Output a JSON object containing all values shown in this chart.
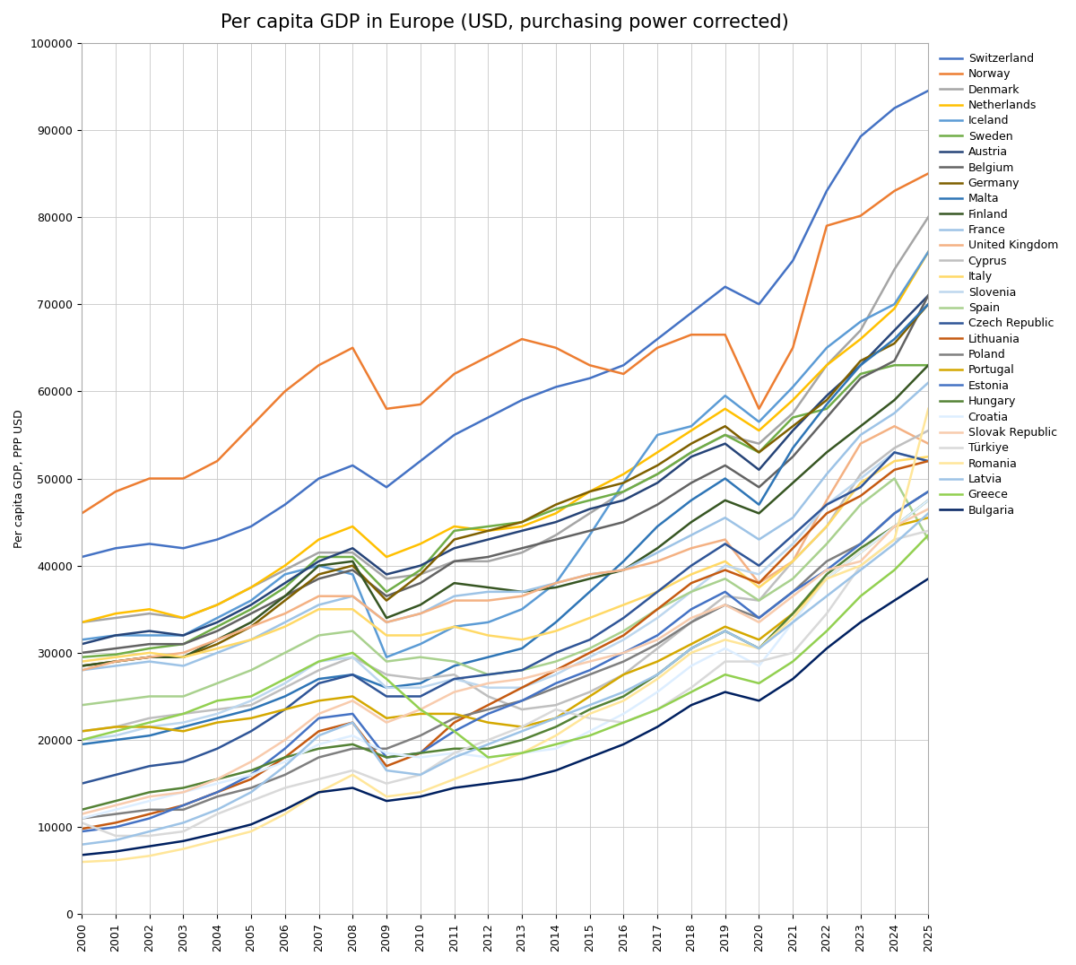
{
  "title": "Per capita GDP in Europe (USD, purchasing power corrected)",
  "ylabel": "Per capita GDP, PPP USD",
  "years": [
    2000,
    2001,
    2002,
    2003,
    2004,
    2005,
    2006,
    2007,
    2008,
    2009,
    2010,
    2011,
    2012,
    2013,
    2014,
    2015,
    2016,
    2017,
    2018,
    2019,
    2020,
    2021,
    2022,
    2023,
    2024,
    2025
  ],
  "countries": [
    {
      "name": "Switzerland",
      "color": "#4472C4",
      "values": [
        41000,
        42000,
        42500,
        42000,
        43000,
        44500,
        47000,
        50000,
        51500,
        49000,
        52000,
        55000,
        57000,
        59000,
        60500,
        61500,
        63000,
        66000,
        69000,
        72000,
        70000,
        75000,
        83000,
        89243,
        92500,
        94500
      ]
    },
    {
      "name": "Norway",
      "color": "#ED7D31",
      "values": [
        46000,
        48500,
        50000,
        50000,
        52000,
        56000,
        60000,
        63000,
        65000,
        58000,
        58500,
        62000,
        64000,
        66000,
        65000,
        63000,
        62000,
        65000,
        66500,
        66500,
        58000,
        65000,
        79000,
        80144,
        83000,
        85000
      ]
    },
    {
      "name": "Denmark",
      "color": "#A5A5A5",
      "values": [
        33500,
        34000,
        34500,
        34000,
        35500,
        37500,
        39500,
        41500,
        41500,
        38500,
        39000,
        40500,
        40500,
        41500,
        43500,
        46000,
        48500,
        50500,
        53000,
        55000,
        54000,
        57500,
        63000,
        67000,
        74000,
        80000
      ]
    },
    {
      "name": "Netherlands",
      "color": "#FFC000",
      "values": [
        33500,
        34500,
        35000,
        34000,
        35500,
        37500,
        40000,
        43000,
        44500,
        41000,
        42500,
        44500,
        44000,
        44500,
        46000,
        48500,
        50500,
        53000,
        55500,
        58000,
        55500,
        59000,
        63000,
        66000,
        69500,
        76000
      ]
    },
    {
      "name": "Iceland",
      "color": "#5B9BD5",
      "values": [
        31500,
        32000,
        32000,
        32000,
        34000,
        36000,
        39000,
        40000,
        39000,
        29500,
        31000,
        33000,
        33500,
        35000,
        38000,
        43500,
        49500,
        55000,
        56000,
        59500,
        56500,
        60500,
        65000,
        68000,
        70000,
        76000
      ]
    },
    {
      "name": "Sweden",
      "color": "#70AD47",
      "values": [
        29500,
        29800,
        30500,
        31000,
        33000,
        35000,
        37500,
        41000,
        41000,
        37000,
        39500,
        44000,
        44500,
        45000,
        46500,
        47500,
        48500,
        50500,
        53000,
        55000,
        53000,
        57000,
        58000,
        62000,
        63000,
        63000
      ]
    },
    {
      "name": "Austria",
      "color": "#264478",
      "values": [
        31000,
        32000,
        32500,
        32000,
        33500,
        35500,
        38000,
        40500,
        42000,
        39000,
        40000,
        42000,
        43000,
        44000,
        45000,
        46500,
        47500,
        49500,
        52500,
        54000,
        51000,
        55500,
        59500,
        63000,
        67000,
        71000
      ]
    },
    {
      "name": "Belgium",
      "color": "#636363",
      "values": [
        30000,
        30500,
        31000,
        31000,
        32500,
        34500,
        36500,
        38500,
        39500,
        36500,
        38000,
        40500,
        41000,
        42000,
        43000,
        44000,
        45000,
        47000,
        49500,
        51500,
        49000,
        52500,
        57000,
        61500,
        63500,
        71000
      ]
    },
    {
      "name": "Germany",
      "color": "#7F6000",
      "values": [
        28500,
        29000,
        29500,
        29500,
        31000,
        33000,
        36000,
        39000,
        40000,
        36000,
        39000,
        43000,
        44000,
        45000,
        47000,
        48500,
        49500,
        51500,
        54000,
        56000,
        53000,
        56000,
        59000,
        63500,
        65500,
        70000
      ]
    },
    {
      "name": "Malta",
      "color": "#2E75B6",
      "values": [
        19500,
        20000,
        20500,
        21500,
        22500,
        23500,
        25000,
        27000,
        27500,
        26000,
        26500,
        28500,
        29500,
        30500,
        33500,
        37000,
        40500,
        44500,
        47500,
        50000,
        47000,
        53500,
        58500,
        63000,
        66000,
        70000
      ]
    },
    {
      "name": "Finland",
      "color": "#375623",
      "values": [
        28500,
        29000,
        29500,
        29500,
        31500,
        33500,
        36500,
        40000,
        40500,
        34000,
        35500,
        38000,
        37500,
        37000,
        37500,
        38500,
        39500,
        42000,
        45000,
        47500,
        46000,
        49500,
        53000,
        56000,
        59000,
        63000
      ]
    },
    {
      "name": "France",
      "color": "#9DC3E6",
      "values": [
        28000,
        28500,
        29000,
        28500,
        30000,
        31500,
        33500,
        35500,
        36500,
        33500,
        34500,
        36500,
        37000,
        37000,
        38000,
        39000,
        39500,
        41500,
        43500,
        45500,
        43000,
        45500,
        50500,
        55000,
        57500,
        61000
      ]
    },
    {
      "name": "United Kingdom",
      "color": "#F4B183",
      "values": [
        28000,
        29000,
        29500,
        30000,
        31500,
        33000,
        34500,
        36500,
        36500,
        33500,
        34500,
        36000,
        36000,
        36500,
        38000,
        39000,
        39500,
        40500,
        42000,
        43000,
        38000,
        40500,
        47500,
        54000,
        56000,
        54000
      ]
    },
    {
      "name": "Cyprus",
      "color": "#BFBFBF",
      "values": [
        21000,
        21500,
        22500,
        23000,
        23500,
        24000,
        26000,
        28000,
        29500,
        27500,
        27000,
        27500,
        25000,
        23500,
        24000,
        25500,
        27500,
        30500,
        33500,
        36500,
        36000,
        40500,
        44500,
        50500,
        53500,
        55500
      ]
    },
    {
      "name": "Italy",
      "color": "#FFD966",
      "values": [
        29000,
        29500,
        30000,
        29500,
        30500,
        31500,
        33000,
        35000,
        35000,
        32000,
        32000,
        33000,
        32000,
        31500,
        32500,
        34000,
        35500,
        37000,
        39000,
        40500,
        37500,
        40500,
        44500,
        49500,
        52000,
        52500
      ]
    },
    {
      "name": "Slovenia",
      "color": "#BDD7EE",
      "values": [
        20000,
        20500,
        21500,
        22000,
        23000,
        24500,
        26500,
        29000,
        29500,
        26000,
        26000,
        27000,
        26000,
        26000,
        27500,
        29500,
        31500,
        34000,
        37000,
        40000,
        39000,
        42500,
        47000,
        50000,
        53000,
        52000
      ]
    },
    {
      "name": "Spain",
      "color": "#A9D18E",
      "values": [
        24000,
        24500,
        25000,
        25000,
        26500,
        28000,
        30000,
        32000,
        32500,
        29000,
        29500,
        29000,
        27500,
        28000,
        29000,
        30500,
        32500,
        35000,
        37000,
        38500,
        36000,
        38500,
        42500,
        47000,
        50000,
        43000
      ]
    },
    {
      "name": "Czech Republic",
      "color": "#2F5597",
      "values": [
        15000,
        16000,
        17000,
        17500,
        19000,
        21000,
        23500,
        26500,
        27500,
        25000,
        25000,
        27000,
        27500,
        28000,
        30000,
        31500,
        34000,
        37000,
        40000,
        42500,
        40000,
        43500,
        47000,
        49000,
        53000,
        52000
      ]
    },
    {
      "name": "Lithuania",
      "color": "#C55A11",
      "values": [
        9800,
        10500,
        11500,
        12500,
        14000,
        15500,
        18000,
        21000,
        22000,
        17000,
        18500,
        22000,
        24000,
        26000,
        28000,
        30000,
        32000,
        35000,
        38000,
        39500,
        38000,
        42000,
        46000,
        48000,
        51000,
        52000
      ]
    },
    {
      "name": "Poland",
      "color": "#7F7F7F",
      "values": [
        11000,
        11500,
        12000,
        12000,
        13500,
        14500,
        16000,
        18000,
        19000,
        19000,
        20500,
        22500,
        23500,
        24500,
        26000,
        27500,
        29000,
        31000,
        33500,
        35500,
        34000,
        37000,
        40500,
        42500,
        46000,
        48500
      ]
    },
    {
      "name": "Portugal",
      "color": "#D4A800",
      "values": [
        21000,
        21500,
        21500,
        21000,
        22000,
        22500,
        23500,
        24500,
        25000,
        22500,
        23000,
        23000,
        22000,
        21500,
        22500,
        25000,
        27500,
        29000,
        31000,
        33000,
        31500,
        34500,
        38500,
        41500,
        44500,
        45500
      ]
    },
    {
      "name": "Estonia",
      "color": "#4472C4",
      "values": [
        9500,
        10000,
        11000,
        12500,
        14000,
        16000,
        19000,
        22500,
        23000,
        18000,
        18500,
        21000,
        23000,
        24500,
        26500,
        28000,
        30000,
        32000,
        35000,
        37000,
        34000,
        37000,
        39500,
        42500,
        46000,
        48500
      ]
    },
    {
      "name": "Hungary",
      "color": "#548235",
      "values": [
        12000,
        13000,
        14000,
        14500,
        15500,
        16500,
        18000,
        19000,
        19500,
        18000,
        18500,
        19000,
        19000,
        20000,
        21500,
        23500,
        25000,
        27500,
        30500,
        32500,
        30500,
        34500,
        39000,
        42000,
        44500,
        47500
      ]
    },
    {
      "name": "Croatia",
      "color": "#DDEEFF",
      "values": [
        11000,
        12000,
        13000,
        14000,
        15000,
        16000,
        17500,
        19500,
        20500,
        18500,
        18000,
        18500,
        18000,
        18500,
        19000,
        21000,
        23000,
        25500,
        28500,
        30500,
        28500,
        33500,
        38500,
        41500,
        44500,
        47500
      ]
    },
    {
      "name": "Slovak Republic",
      "color": "#F8CBAD",
      "values": [
        11500,
        12500,
        13500,
        14000,
        15500,
        17500,
        20000,
        23000,
        24500,
        22000,
        23500,
        25500,
        26500,
        27000,
        28000,
        29000,
        30000,
        31500,
        34000,
        35500,
        33500,
        36500,
        39500,
        40500,
        44500,
        46500
      ]
    },
    {
      "name": "Türkiye",
      "color": "#D9D9D9",
      "values": [
        10500,
        9000,
        9000,
        9500,
        11500,
        13000,
        14500,
        15500,
        16500,
        15000,
        16000,
        18500,
        20000,
        21500,
        23500,
        22500,
        22000,
        23500,
        26000,
        29000,
        29000,
        30000,
        34500,
        40000,
        43000,
        44000
      ]
    },
    {
      "name": "Romania",
      "color": "#FFE699",
      "values": [
        6000,
        6200,
        6700,
        7500,
        8500,
        9500,
        11500,
        14000,
        16000,
        13500,
        14000,
        15500,
        17000,
        18500,
        20500,
        23000,
        24500,
        27000,
        30000,
        31500,
        30500,
        34000,
        38500,
        40000,
        43000,
        58000
      ]
    },
    {
      "name": "Latvia",
      "color": "#9DC3E6",
      "values": [
        8000,
        8500,
        9500,
        10500,
        12000,
        14000,
        17000,
        20500,
        22000,
        16500,
        16000,
        18000,
        19500,
        21000,
        22500,
        24000,
        25500,
        27500,
        30500,
        32500,
        30500,
        33500,
        36500,
        39500,
        42500,
        46000
      ]
    },
    {
      "name": "Greece",
      "color": "#92D050",
      "values": [
        20000,
        21000,
        22000,
        23000,
        24500,
        25000,
        27000,
        29000,
        30000,
        27000,
        23500,
        21000,
        18000,
        18500,
        19500,
        20500,
        22000,
        23500,
        25500,
        27500,
        26500,
        29000,
        32500,
        36500,
        39500,
        43500
      ]
    },
    {
      "name": "Bulgaria",
      "color": "#002060",
      "values": [
        6800,
        7200,
        7800,
        8400,
        9300,
        10300,
        12000,
        14000,
        14500,
        13000,
        13500,
        14500,
        15000,
        15500,
        16500,
        18000,
        19500,
        21500,
        24000,
        25500,
        24500,
        27000,
        30500,
        33500,
        36000,
        38500
      ]
    }
  ]
}
